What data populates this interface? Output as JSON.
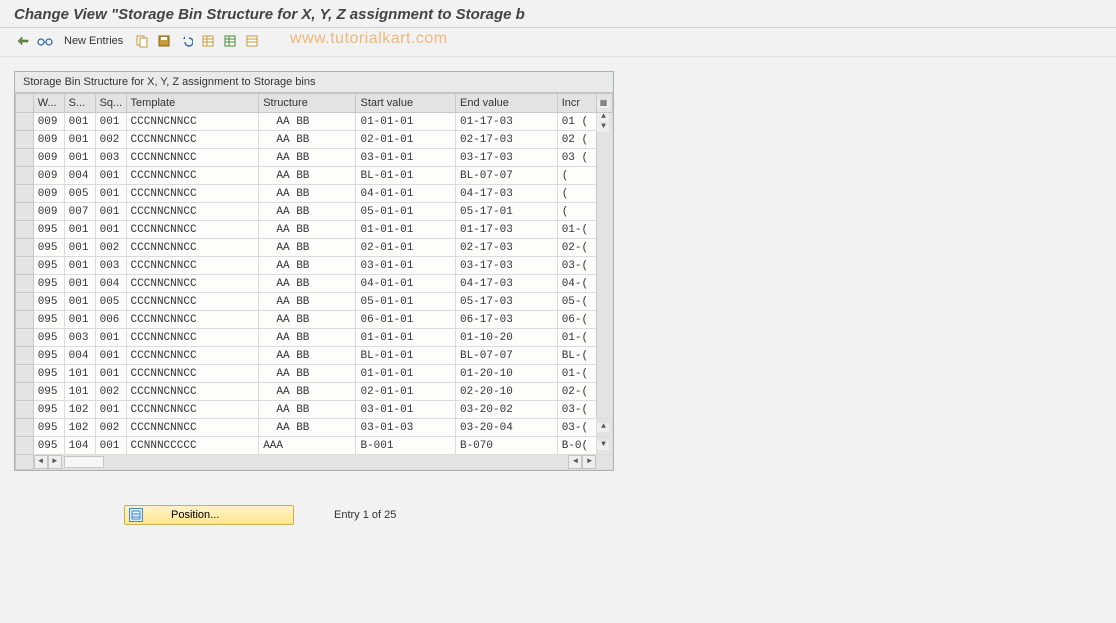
{
  "page_title": "Change View \"Storage Bin Structure for X, Y, Z assignment to Storage b",
  "toolbar": {
    "new_entries_label": "New Entries"
  },
  "watermark": "www.tutorialkart.com",
  "table": {
    "title": "Storage Bin Structure for X, Y, Z assignment to Storage bins",
    "columns": [
      "W...",
      "S...",
      "Sq...",
      "Template",
      "Structure",
      "Start value",
      "End value",
      "Incr"
    ],
    "rows": [
      {
        "w": "009",
        "s": "001",
        "sq": "001",
        "tmpl": "CCCNNCNNCC",
        "struct": "  AA BB",
        "start": "01-01-01",
        "end": "01-17-03",
        "incr": "01 ("
      },
      {
        "w": "009",
        "s": "001",
        "sq": "002",
        "tmpl": "CCCNNCNNCC",
        "struct": "  AA BB",
        "start": "02-01-01",
        "end": "02-17-03",
        "incr": "02 ("
      },
      {
        "w": "009",
        "s": "001",
        "sq": "003",
        "tmpl": "CCCNNCNNCC",
        "struct": "  AA BB",
        "start": "03-01-01",
        "end": "03-17-03",
        "incr": "03 ("
      },
      {
        "w": "009",
        "s": "004",
        "sq": "001",
        "tmpl": "CCCNNCNNCC",
        "struct": "  AA BB",
        "start": "BL-01-01",
        "end": "BL-07-07",
        "incr": "  ("
      },
      {
        "w": "009",
        "s": "005",
        "sq": "001",
        "tmpl": "CCCNNCNNCC",
        "struct": "  AA BB",
        "start": "04-01-01",
        "end": "04-17-03",
        "incr": "  ("
      },
      {
        "w": "009",
        "s": "007",
        "sq": "001",
        "tmpl": "CCCNNCNNCC",
        "struct": "  AA BB",
        "start": "05-01-01",
        "end": "05-17-01",
        "incr": "  ("
      },
      {
        "w": "095",
        "s": "001",
        "sq": "001",
        "tmpl": "CCCNNCNNCC",
        "struct": "  AA BB",
        "start": "01-01-01",
        "end": "01-17-03",
        "incr": "01-("
      },
      {
        "w": "095",
        "s": "001",
        "sq": "002",
        "tmpl": "CCCNNCNNCC",
        "struct": "  AA BB",
        "start": "02-01-01",
        "end": "02-17-03",
        "incr": "02-("
      },
      {
        "w": "095",
        "s": "001",
        "sq": "003",
        "tmpl": "CCCNNCNNCC",
        "struct": "  AA BB",
        "start": "03-01-01",
        "end": "03-17-03",
        "incr": "03-("
      },
      {
        "w": "095",
        "s": "001",
        "sq": "004",
        "tmpl": "CCCNNCNNCC",
        "struct": "  AA BB",
        "start": "04-01-01",
        "end": "04-17-03",
        "incr": "04-("
      },
      {
        "w": "095",
        "s": "001",
        "sq": "005",
        "tmpl": "CCCNNCNNCC",
        "struct": "  AA BB",
        "start": "05-01-01",
        "end": "05-17-03",
        "incr": "05-("
      },
      {
        "w": "095",
        "s": "001",
        "sq": "006",
        "tmpl": "CCCNNCNNCC",
        "struct": "  AA BB",
        "start": "06-01-01",
        "end": "06-17-03",
        "incr": "06-("
      },
      {
        "w": "095",
        "s": "003",
        "sq": "001",
        "tmpl": "CCCNNCNNCC",
        "struct": "  AA BB",
        "start": "01-01-01",
        "end": "01-10-20",
        "incr": "01-("
      },
      {
        "w": "095",
        "s": "004",
        "sq": "001",
        "tmpl": "CCCNNCNNCC",
        "struct": "  AA BB",
        "start": "BL-01-01",
        "end": "BL-07-07",
        "incr": "BL-("
      },
      {
        "w": "095",
        "s": "101",
        "sq": "001",
        "tmpl": "CCCNNCNNCC",
        "struct": "  AA BB",
        "start": "01-01-01",
        "end": "01-20-10",
        "incr": "01-("
      },
      {
        "w": "095",
        "s": "101",
        "sq": "002",
        "tmpl": "CCCNNCNNCC",
        "struct": "  AA BB",
        "start": "02-01-01",
        "end": "02-20-10",
        "incr": "02-("
      },
      {
        "w": "095",
        "s": "102",
        "sq": "001",
        "tmpl": "CCCNNCNNCC",
        "struct": "  AA BB",
        "start": "03-01-01",
        "end": "03-20-02",
        "incr": "03-("
      },
      {
        "w": "095",
        "s": "102",
        "sq": "002",
        "tmpl": "CCCNNCNNCC",
        "struct": "  AA BB",
        "start": "03-01-03",
        "end": "03-20-04",
        "incr": "03-("
      },
      {
        "w": "095",
        "s": "104",
        "sq": "001",
        "tmpl": "CCNNNCCCCC",
        "struct": "AAA",
        "start": "B-001",
        "end": "B-070",
        "incr": "B-0("
      }
    ]
  },
  "footer": {
    "position_label": "Position...",
    "entry_text": "Entry 1 of 25"
  },
  "colors": {
    "page_bg": "#f2f2f2",
    "header_bg": "#e3e3e3",
    "cell_bg": "#fdfdfa",
    "border": "#c8c8c8",
    "watermark": "#efb77a",
    "button_bg_top": "#fff2c9",
    "button_bg_bottom": "#ffe68a"
  }
}
